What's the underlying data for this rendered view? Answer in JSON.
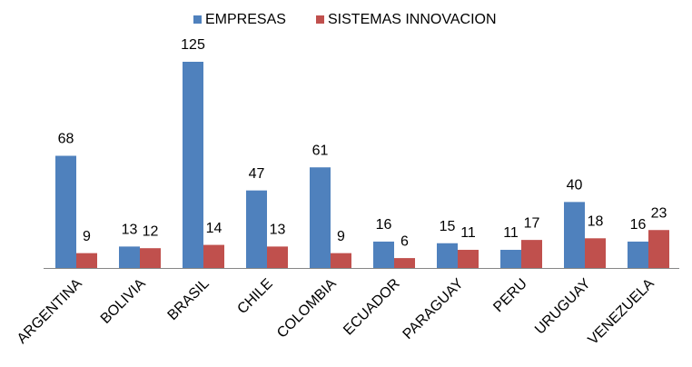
{
  "chart_data": {
    "type": "bar",
    "categories": [
      "ARGENTINA",
      "BOLIVIA",
      "BRASIL",
      "CHILE",
      "COLOMBIA",
      "ECUADOR",
      "PARAGUAY",
      "PERU",
      "URUGUAY",
      "VENEZUELA"
    ],
    "series": [
      {
        "name": "EMPRESAS",
        "color": "#4f81bd",
        "values": [
          68,
          13,
          125,
          47,
          61,
          16,
          15,
          11,
          40,
          16
        ]
      },
      {
        "name": "SISTEMAS INNOVACION",
        "color": "#c0504d",
        "values": [
          9,
          12,
          14,
          13,
          9,
          6,
          11,
          17,
          18,
          23
        ]
      }
    ]
  }
}
